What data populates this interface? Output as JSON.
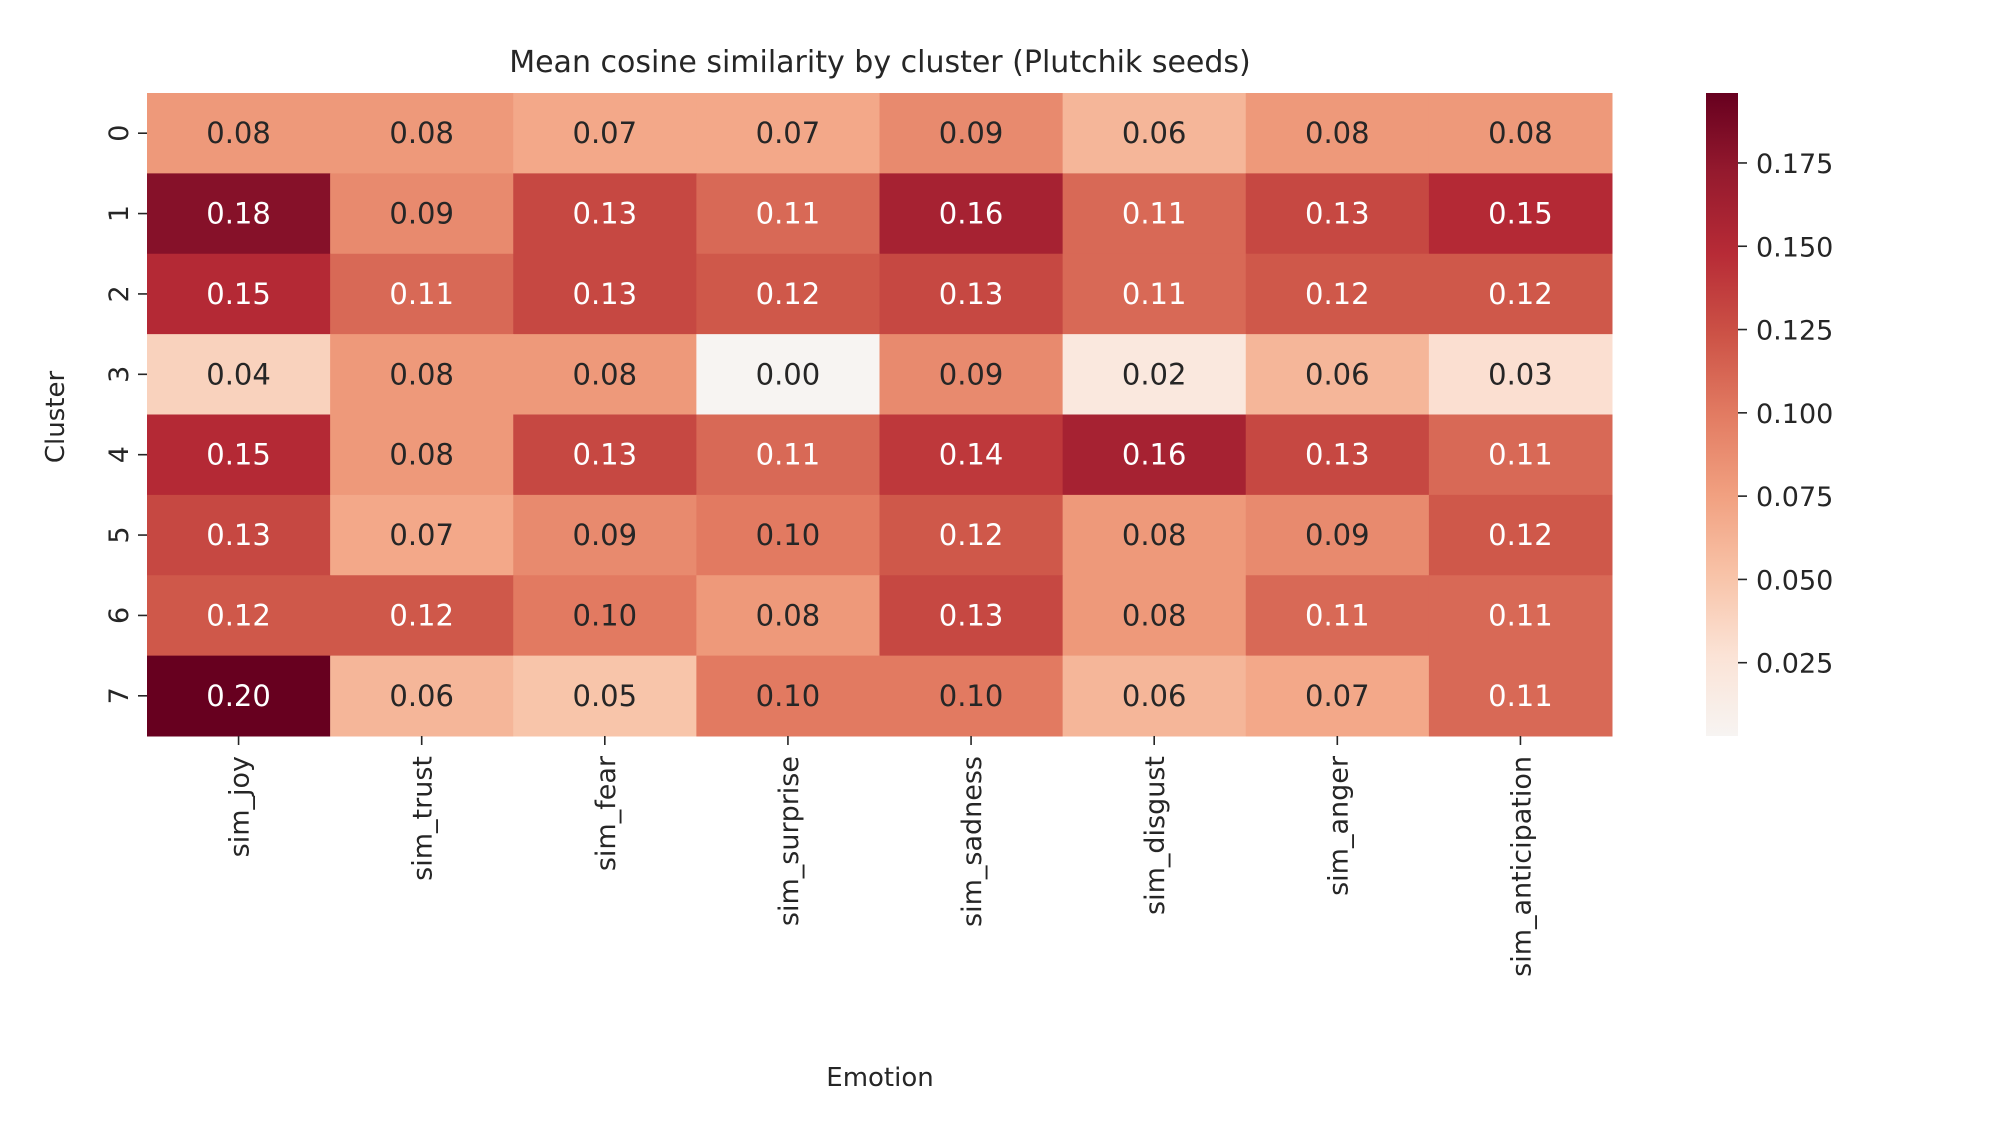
{
  "chart_data": {
    "type": "heatmap",
    "title": "Mean cosine similarity by cluster (Plutchik seeds)",
    "xlabel": "Emotion",
    "ylabel": "Cluster",
    "x_categories": [
      "sim_joy",
      "sim_trust",
      "sim_fear",
      "sim_surprise",
      "sim_sadness",
      "sim_disgust",
      "sim_anger",
      "sim_anticipation"
    ],
    "y_categories": [
      "0",
      "1",
      "2",
      "3",
      "4",
      "5",
      "6",
      "7"
    ],
    "values": [
      [
        0.08,
        0.08,
        0.07,
        0.07,
        0.09,
        0.06,
        0.08,
        0.08
      ],
      [
        0.18,
        0.09,
        0.13,
        0.11,
        0.16,
        0.11,
        0.13,
        0.15
      ],
      [
        0.15,
        0.11,
        0.13,
        0.12,
        0.13,
        0.11,
        0.12,
        0.12
      ],
      [
        0.04,
        0.08,
        0.08,
        0.0,
        0.09,
        0.02,
        0.06,
        0.03
      ],
      [
        0.15,
        0.08,
        0.13,
        0.11,
        0.14,
        0.16,
        0.13,
        0.11
      ],
      [
        0.13,
        0.07,
        0.09,
        0.1,
        0.12,
        0.08,
        0.09,
        0.12
      ],
      [
        0.12,
        0.12,
        0.1,
        0.08,
        0.13,
        0.08,
        0.11,
        0.11
      ],
      [
        0.2,
        0.06,
        0.05,
        0.1,
        0.1,
        0.06,
        0.07,
        0.11
      ]
    ],
    "value_format": "0.00",
    "colorbar": {
      "range": [
        0.003,
        0.196
      ],
      "ticks": [
        0.025,
        0.05,
        0.075,
        0.1,
        0.125,
        0.15,
        0.175
      ],
      "tick_labels": [
        "0.025",
        "0.050",
        "0.075",
        "0.100",
        "0.125",
        "0.150",
        "0.175"
      ],
      "colormap": "RdBu_r (upper half)",
      "color_stops": [
        "#f7f4f2",
        "#fbe3d6",
        "#f8c3a8",
        "#f1a080",
        "#e27b62",
        "#cc5246",
        "#b72b36",
        "#951a2e",
        "#67001f"
      ]
    },
    "annotation_text_colors": {
      "dark": "#262626",
      "light": "#ffffff"
    }
  }
}
